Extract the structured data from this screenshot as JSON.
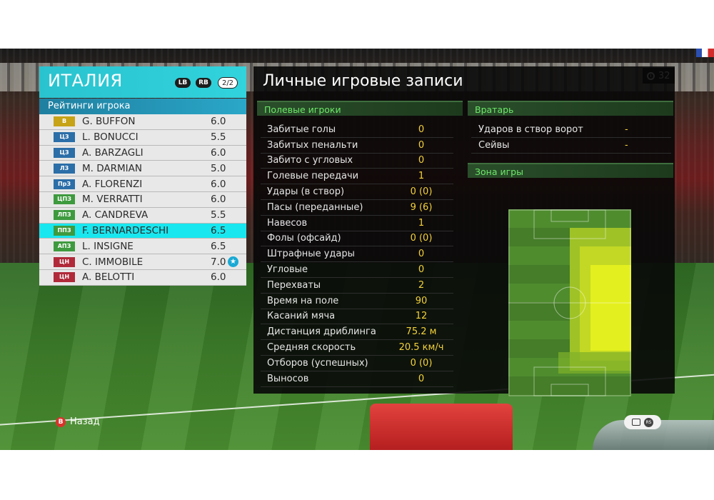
{
  "timer": "32",
  "team": {
    "name": "ИТАЛИЯ",
    "lb": "LB",
    "rb": "RB",
    "page": "2/2",
    "ratings_title": "Рейтинги игрока",
    "players": [
      {
        "pos": "В",
        "pos_color": "#c7a317",
        "name": "G. BUFFON",
        "rating": "6.0"
      },
      {
        "pos": "ЦЗ",
        "pos_color": "#2b6ea8",
        "name": "L. BONUCCI",
        "rating": "5.5"
      },
      {
        "pos": "ЦЗ",
        "pos_color": "#2b6ea8",
        "name": "A. BARZAGLI",
        "rating": "6.0"
      },
      {
        "pos": "ЛЗ",
        "pos_color": "#2b6ea8",
        "name": "M. DARMIAN",
        "rating": "5.0"
      },
      {
        "pos": "ПрЗ",
        "pos_color": "#2b6ea8",
        "name": "A. FLORENZI",
        "rating": "6.0"
      },
      {
        "pos": "ЦПЗ",
        "pos_color": "#3e9a3e",
        "name": "M. VERRATTI",
        "rating": "6.0"
      },
      {
        "pos": "ЛПЗ",
        "pos_color": "#3e9a3e",
        "name": "A. CANDREVA",
        "rating": "5.5"
      },
      {
        "pos": "ППЗ",
        "pos_color": "#3e9a3e",
        "name": "F. BERNARDESCHI",
        "rating": "6.5",
        "selected": true
      },
      {
        "pos": "АПЗ",
        "pos_color": "#3e9a3e",
        "name": "L. INSIGNE",
        "rating": "6.5"
      },
      {
        "pos": "ЦН",
        "pos_color": "#b02a3a",
        "name": "C. IMMOBILE",
        "rating": "7.0",
        "star": "★"
      },
      {
        "pos": "ЦН",
        "pos_color": "#b02a3a",
        "name": "A. BELOTTI",
        "rating": "6.0"
      }
    ]
  },
  "records": {
    "title": "Личные игровые записи",
    "field_header": "Полевые игроки",
    "gk_header": "Вратарь",
    "zone_header": "Зона игры",
    "stats": [
      {
        "label": "Забитые голы",
        "value": "0"
      },
      {
        "label": "Забитых пенальти",
        "value": "0"
      },
      {
        "label": "Забито с угловых",
        "value": "0"
      },
      {
        "label": "Голевые передачи",
        "value": "1"
      },
      {
        "label": "Удары (в створ)",
        "value": "0 (0)"
      },
      {
        "label": "Пасы (переданные)",
        "value": "9 (6)"
      },
      {
        "label": "Навесов",
        "value": "1"
      },
      {
        "label": "Фолы (офсайд)",
        "value": "0 (0)"
      },
      {
        "label": "Штрафные удары",
        "value": "0"
      },
      {
        "label": "Угловые",
        "value": "0"
      },
      {
        "label": "Перехваты",
        "value": "2"
      },
      {
        "label": "Время на поле",
        "value": "90"
      },
      {
        "label": "Касаний мяча",
        "value": "12"
      },
      {
        "label": "Дистанция дриблинга",
        "value": "75.2 м"
      },
      {
        "label": "Средняя скорость",
        "value": "20.5 км/ч"
      },
      {
        "label": "Отборов (успешных)",
        "value": "0 (0)"
      },
      {
        "label": "Выносов",
        "value": "0"
      }
    ],
    "gk_stats": [
      {
        "label": "Ударов в створ ворот",
        "value": "-"
      },
      {
        "label": "Сейвы",
        "value": "-"
      }
    ]
  },
  "footer": {
    "back_button": "B",
    "back_label": "Назад",
    "rs_label": "RS"
  },
  "colors": {
    "heat_low": "#9fc227",
    "heat_high": "#e4ef1f",
    "accent_cyan": "#19e7ef",
    "stat_value": "#f4d23a",
    "section_text": "#6de86a"
  }
}
